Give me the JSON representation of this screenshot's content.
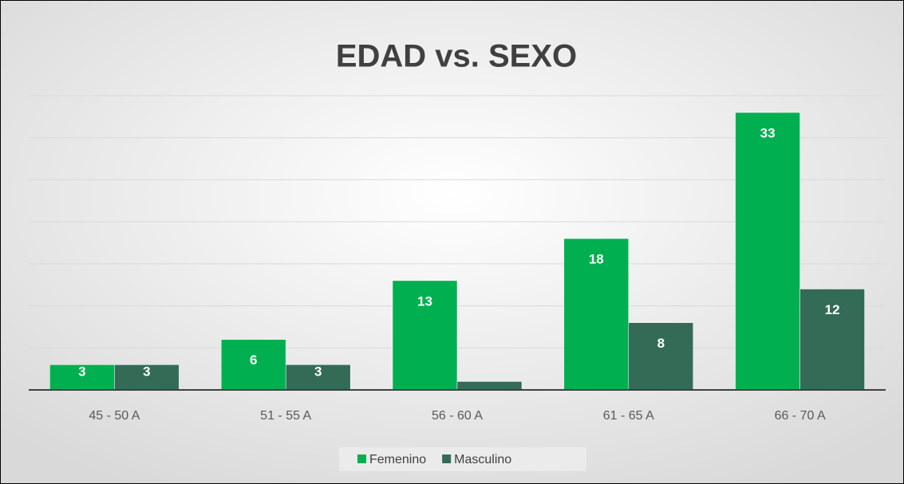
{
  "chart_data": {
    "type": "bar",
    "title": "EDAD vs. SEXO",
    "categories": [
      "45 - 50 A",
      "51 - 55 A",
      "56 - 60 A",
      "61 - 65 A",
      "66 - 70 A"
    ],
    "series": [
      {
        "name": "Femenino",
        "color": "#00b050",
        "values": [
          3,
          6,
          13,
          18,
          33
        ]
      },
      {
        "name": "Masculino",
        "color": "#336b57",
        "values": [
          3,
          3,
          1,
          8,
          12
        ],
        "value_labels": [
          "3",
          "3",
          null,
          "8",
          "12"
        ]
      }
    ],
    "ylim": [
      0,
      35
    ],
    "yticks": [
      0,
      5,
      10,
      15,
      20,
      25,
      30,
      35
    ],
    "grid": true,
    "legend": "bottom"
  }
}
